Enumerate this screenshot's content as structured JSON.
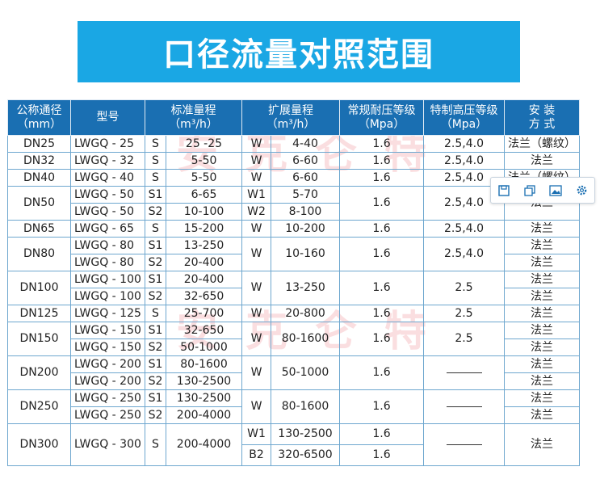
{
  "title": "口径流量对照范围",
  "watermark": "安克仑特",
  "headers": {
    "diameter": "公称通径",
    "diameter_unit": "（mm）",
    "model": "型号",
    "std_range": "标准量程",
    "std_unit": "（m³/h）",
    "ext_range": "扩展量程",
    "ext_unit": "（m³/h）",
    "normal_pressure": "常规耐压等级",
    "normal_unit": "（Mpa）",
    "high_pressure": "特制高压等级",
    "high_unit": "（Mpa）",
    "install": "安  装",
    "install_2": "方  式"
  },
  "rows": [
    {
      "dn": "DN25",
      "model": "LWGQ - 25",
      "s": "S",
      "std": "25 -25",
      "e": "W",
      "ext": "4-40",
      "np": "1.6",
      "hp": "2.5,4.0",
      "inst": "法兰（螺纹）"
    },
    {
      "dn": "DN32",
      "model": "LWGQ - 32",
      "s": "S",
      "std": "5-50",
      "e": "W",
      "ext": "6-60",
      "np": "1.6",
      "hp": "2.5,4.0",
      "inst": "法兰"
    },
    {
      "dn": "DN40",
      "model": "LWGQ - 40",
      "s": "S",
      "std": "5-50",
      "e": "W",
      "ext": "6-60",
      "np": "1.6",
      "hp": "2.5,4.0",
      "inst": "法兰（螺纹）"
    },
    {
      "dn": "DN50",
      "model": "LWGQ - 50",
      "s": "S1",
      "std": "6-65",
      "e": "W1",
      "ext": "5-70",
      "np": "1.6",
      "hp": "2.5,4.0",
      "inst": "法兰"
    },
    {
      "model": "LWGQ - 50",
      "s": "S2",
      "std": "10-100",
      "e": "W2",
      "ext": "8-100"
    },
    {
      "dn": "DN65",
      "model": "LWGQ - 65",
      "s": "S",
      "std": "15-200",
      "e": "W",
      "ext": "10-200",
      "np": "1.6",
      "hp": "2.5,4.0",
      "inst": "法兰"
    },
    {
      "dn": "DN80",
      "model": "LWGQ - 80",
      "s": "S1",
      "std": "13-250",
      "e": "W",
      "ext": "10-160",
      "np": "1.6",
      "hp": "2.5,4.0",
      "inst": "法兰"
    },
    {
      "model": "LWGQ - 80",
      "s": "S2",
      "std": "20-400",
      "inst": "法兰"
    },
    {
      "dn": "DN100",
      "model": "LWGQ - 100",
      "s": "S1",
      "std": "20-400",
      "e": "W",
      "ext": "13-250",
      "np": "1.6",
      "hp": "2.5",
      "inst": "法兰"
    },
    {
      "model": "LWGQ - 100",
      "s": "S2",
      "std": "32-650",
      "inst": "法兰"
    },
    {
      "dn": "DN125",
      "model": "LWGQ - 125",
      "s": "S",
      "std": "25-700",
      "e": "W",
      "ext": "20-800",
      "np": "1.6",
      "hp": "2.5",
      "inst": "法兰"
    },
    {
      "dn": "DN150",
      "model": "LWGQ - 150",
      "s": "S1",
      "std": "32-650",
      "e": "W",
      "ext": "80-1600",
      "np": "1.6",
      "hp": "2.5",
      "inst": "法兰"
    },
    {
      "model": "LWGQ - 150",
      "s": "S2",
      "std": "50-1000",
      "inst": "法兰"
    },
    {
      "dn": "DN200",
      "model": "LWGQ - 200",
      "s": "S1",
      "std": "80-1600",
      "e": "W",
      "ext": "50-1000",
      "np": "1.6",
      "inst": "法兰"
    },
    {
      "model": "LWGQ - 200",
      "s": "S2",
      "std": "130-2500",
      "inst": "法兰"
    },
    {
      "dn": "DN250",
      "model": "LWGQ - 250",
      "s": "S1",
      "std": "130-2500",
      "e": "W",
      "ext": "80-1600",
      "np": "1.6",
      "inst": "法兰"
    },
    {
      "model": "LWGQ - 250",
      "s": "S2",
      "std": "200-4000",
      "inst": "法兰"
    },
    {
      "dn": "DN300",
      "model": "LWGQ - 300",
      "s": "S",
      "std": "200-4000",
      "e": "W1",
      "ext": "130-2500",
      "np": "1.6",
      "inst": "法兰"
    },
    {
      "e": "B2",
      "ext": "320-6500",
      "np": "1.6"
    }
  ],
  "toolbar": {
    "icons": [
      "save-icon",
      "copy-icon",
      "image-icon",
      "gear-icon"
    ]
  }
}
